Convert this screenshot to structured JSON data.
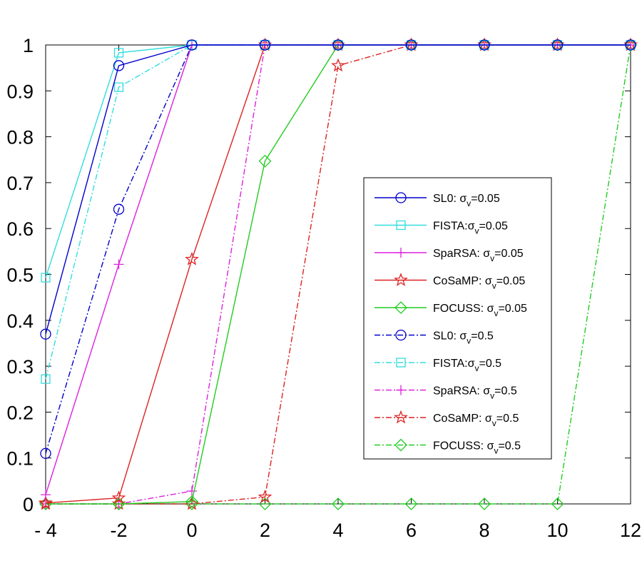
{
  "chart_data": {
    "type": "line",
    "x": [
      -4,
      -2,
      0,
      2,
      4,
      6,
      8,
      10,
      12
    ],
    "xlim": [
      -4,
      12
    ],
    "ylim": [
      0,
      1
    ],
    "xticks": [
      "- 4",
      "-2",
      "0",
      "2",
      "4",
      "6",
      "8",
      "10",
      "12"
    ],
    "yticks": [
      "0",
      "0.1",
      "0.2",
      "0.3",
      "0.4",
      "0.5",
      "0.6",
      "0.7",
      "0.8",
      "0.9",
      "1"
    ],
    "grid": false,
    "legend_position": "center-right",
    "series": [
      {
        "name": "SL0: σv=0.05",
        "label_main": "SL0: σ",
        "label_sub": "v",
        "label_tail": "=0.05",
        "color": "#0000cc",
        "style": "solid",
        "marker": "circle",
        "values": [
          0.37,
          0.955,
          1,
          1,
          1,
          1,
          1,
          1,
          1
        ]
      },
      {
        "name": "FISTA:σv=0.05",
        "label_main": "FISTA:σ",
        "label_sub": "v",
        "label_tail": "=0.05",
        "color": "#33dddd",
        "style": "solid",
        "marker": "square",
        "values": [
          0.493,
          0.983,
          1,
          1,
          1,
          1,
          1,
          1,
          1
        ]
      },
      {
        "name": "SpaRSA: σv=0.05",
        "label_main": "SpaRSA: σ",
        "label_sub": "v",
        "label_tail": "=0.05",
        "color": "#dd22dd",
        "style": "solid",
        "marker": "plus",
        "values": [
          0.02,
          0.522,
          1,
          1,
          1,
          1,
          1,
          1,
          1
        ]
      },
      {
        "name": "CoSaMP: σv=0.05",
        "label_main": "CoSaMP: σ",
        "label_sub": "v",
        "label_tail": "=0.05",
        "color": "#dd2222",
        "style": "solid",
        "marker": "star",
        "values": [
          0.002,
          0.013,
          0.533,
          1,
          1,
          1,
          1,
          1,
          1
        ]
      },
      {
        "name": "FOCUSS: σv=0.05",
        "label_main": "FOCUSS: σ",
        "label_sub": "v",
        "label_tail": "=0.05",
        "color": "#22cc22",
        "style": "solid",
        "marker": "diamond",
        "values": [
          0,
          0,
          0.005,
          0.747,
          1,
          1,
          1,
          1,
          1
        ]
      },
      {
        "name": "SL0: σv=0.5",
        "label_main": "SL0: σ",
        "label_sub": "v",
        "label_tail": "=0.5",
        "color": "#0000cc",
        "style": "dashdot",
        "marker": "circle",
        "values": [
          0.11,
          0.642,
          1,
          1,
          1,
          1,
          1,
          1,
          1
        ]
      },
      {
        "name": "FISTA:σv=0.5",
        "label_main": "FISTA:σ",
        "label_sub": "v",
        "label_tail": "=0.5",
        "color": "#33dddd",
        "style": "dashdot",
        "marker": "square",
        "values": [
          0.272,
          0.908,
          1,
          1,
          1,
          1,
          1,
          1,
          1
        ]
      },
      {
        "name": "SpaRSA: σv=0.5",
        "label_main": "SpaRSA: σ",
        "label_sub": "v",
        "label_tail": "=0.5",
        "color": "#dd22dd",
        "style": "dashdot",
        "marker": "plus",
        "values": [
          0,
          0,
          0.028,
          1,
          1,
          1,
          1,
          1,
          1
        ]
      },
      {
        "name": "CoSaMP: σv=0.5",
        "label_main": "CoSaMP: σ",
        "label_sub": "v",
        "label_tail": "=0.5",
        "color": "#dd2222",
        "style": "dashdot",
        "marker": "star",
        "values": [
          0,
          0,
          0,
          0.015,
          0.955,
          1,
          1,
          1,
          1
        ]
      },
      {
        "name": "FOCUSS: σv=0.5",
        "label_main": "FOCUSS: σ",
        "label_sub": "v",
        "label_tail": "=0.5",
        "color": "#22cc22",
        "style": "dashdot",
        "marker": "diamond",
        "values": [
          0,
          0,
          0,
          0,
          0,
          0,
          0,
          0,
          1
        ]
      }
    ]
  }
}
